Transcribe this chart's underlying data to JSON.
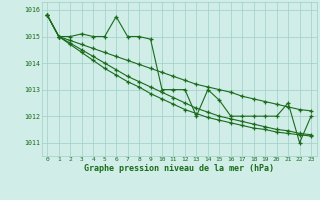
{
  "x": [
    0,
    1,
    2,
    3,
    4,
    5,
    6,
    7,
    8,
    9,
    10,
    11,
    12,
    13,
    14,
    15,
    16,
    17,
    18,
    19,
    20,
    21,
    22,
    23
  ],
  "line1": [
    1015.8,
    1015.0,
    1015.0,
    1015.1,
    1015.0,
    1015.0,
    1015.75,
    1015.0,
    1015.0,
    1014.9,
    1013.0,
    1013.0,
    1013.0,
    1012.0,
    1013.0,
    1012.6,
    1012.0,
    1012.0,
    1012.0,
    1012.0,
    1012.0,
    1012.5,
    1011.0,
    1012.0
  ],
  "line2": [
    1015.8,
    1015.0,
    1014.85,
    1014.7,
    1014.55,
    1014.4,
    1014.25,
    1014.1,
    1013.95,
    1013.8,
    1013.65,
    1013.5,
    1013.35,
    1013.2,
    1013.1,
    1013.0,
    1012.9,
    1012.75,
    1012.65,
    1012.55,
    1012.45,
    1012.35,
    1012.25,
    1012.2
  ],
  "line3": [
    1015.8,
    1015.0,
    1014.7,
    1014.4,
    1014.1,
    1013.8,
    1013.55,
    1013.3,
    1013.1,
    1012.85,
    1012.65,
    1012.45,
    1012.25,
    1012.1,
    1011.95,
    1011.85,
    1011.75,
    1011.65,
    1011.55,
    1011.5,
    1011.4,
    1011.35,
    1011.3,
    1011.25
  ],
  "line4": [
    1015.8,
    1015.0,
    1014.75,
    1014.5,
    1014.25,
    1014.0,
    1013.75,
    1013.5,
    1013.3,
    1013.1,
    1012.9,
    1012.7,
    1012.5,
    1012.3,
    1012.15,
    1012.0,
    1011.9,
    1011.8,
    1011.7,
    1011.6,
    1011.5,
    1011.45,
    1011.35,
    1011.3
  ],
  "line_color": "#1a6b1a",
  "bg_color": "#d0ede8",
  "grid_color": "#9ecfc8",
  "xlabel": "Graphe pression niveau de la mer (hPa)",
  "xlabel_color": "#1a6b1a",
  "ylabel_ticks": [
    1011,
    1012,
    1013,
    1014,
    1015,
    1016
  ],
  "xlim": [
    -0.5,
    23.5
  ],
  "ylim": [
    1010.5,
    1016.3
  ]
}
